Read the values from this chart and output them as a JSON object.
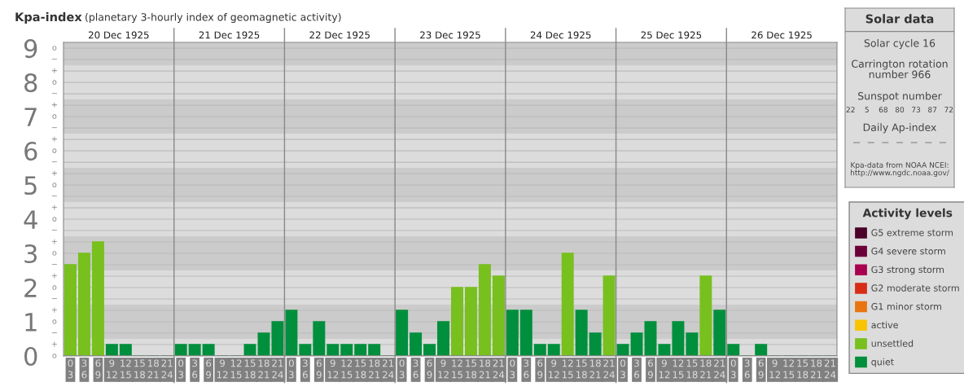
{
  "chart_data": [
    {
      "type": "bar",
      "title": "Kpa-index",
      "subtitle": "(planetary 3-hourly index of geomagnetic activity)",
      "categories": [
        "0\n3",
        "3\n6",
        "6\n9",
        "9\n12",
        "12\n15",
        "15\n18",
        "18\n21",
        "21\n24",
        "0\n3",
        "3\n6",
        "6\n9",
        "9\n12",
        "12\n15",
        "15\n18",
        "18\n21",
        "21\n24",
        "0\n3",
        "3\n6",
        "6\n9",
        "9\n12",
        "12\n15",
        "15\n18",
        "18\n21",
        "21\n24",
        "0\n3",
        "3\n6",
        "6\n9",
        "9\n12",
        "12\n15",
        "15\n18",
        "18\n21",
        "21\n24",
        "0\n3",
        "3\n6",
        "6\n9",
        "9\n12",
        "12\n15",
        "15\n18",
        "18\n21",
        "21\n24",
        "0\n3",
        "3\n6",
        "6\n9",
        "9\n12",
        "12\n15",
        "15\n18",
        "18\n21",
        "21\n24",
        "0\n3",
        "3\n6",
        "6\n9",
        "9\n12",
        "12\n15",
        "15\n18",
        "18\n21",
        "21\n24"
      ],
      "series": [
        {
          "name": "G5 extreme storm",
          "color": "#4b0029",
          "values": [
            null,
            null,
            null,
            null,
            null,
            null,
            null,
            null,
            null,
            null,
            null,
            null,
            null,
            null,
            null,
            null,
            null,
            null,
            null,
            null,
            null,
            null,
            null,
            null,
            null,
            null,
            null,
            null,
            null,
            null,
            null,
            null,
            null,
            null,
            null,
            null,
            null,
            null,
            null,
            null,
            null,
            null,
            null,
            null,
            null,
            null,
            null,
            null,
            null,
            null,
            null,
            null,
            null,
            null,
            null,
            null
          ]
        },
        {
          "name": "G4 severe storm",
          "color": "#6b0039",
          "values": [
            null,
            null,
            null,
            null,
            null,
            null,
            null,
            null,
            null,
            null,
            null,
            null,
            null,
            null,
            null,
            null,
            null,
            null,
            null,
            null,
            null,
            null,
            null,
            null,
            null,
            null,
            null,
            null,
            null,
            null,
            null,
            null,
            null,
            null,
            null,
            null,
            null,
            null,
            null,
            null,
            null,
            null,
            null,
            null,
            null,
            null,
            null,
            null,
            null,
            null,
            null,
            null,
            null,
            null,
            null,
            null
          ]
        },
        {
          "name": "G3 strong storm",
          "color": "#a8004f",
          "values": [
            null,
            null,
            null,
            null,
            null,
            null,
            null,
            null,
            null,
            null,
            null,
            null,
            null,
            null,
            null,
            null,
            null,
            null,
            null,
            null,
            null,
            null,
            null,
            null,
            null,
            null,
            null,
            null,
            null,
            null,
            null,
            null,
            null,
            null,
            null,
            null,
            null,
            null,
            null,
            null,
            null,
            null,
            null,
            null,
            null,
            null,
            null,
            null,
            null,
            null,
            null,
            null,
            null,
            null,
            null,
            null
          ]
        },
        {
          "name": "G2 moderate storm",
          "color": "#d82c17",
          "values": [
            null,
            null,
            null,
            null,
            null,
            null,
            null,
            null,
            null,
            null,
            null,
            null,
            null,
            null,
            null,
            null,
            null,
            null,
            null,
            null,
            null,
            null,
            null,
            null,
            null,
            null,
            null,
            null,
            null,
            null,
            null,
            null,
            null,
            null,
            null,
            null,
            null,
            null,
            null,
            null,
            null,
            null,
            null,
            null,
            null,
            null,
            null,
            null,
            null,
            null,
            null,
            null,
            null,
            null,
            null,
            null
          ]
        },
        {
          "name": "G1 minor storm",
          "color": "#e87511",
          "values": [
            null,
            null,
            null,
            null,
            null,
            null,
            null,
            null,
            null,
            null,
            null,
            null,
            null,
            null,
            null,
            null,
            null,
            null,
            null,
            null,
            null,
            null,
            null,
            null,
            null,
            null,
            null,
            null,
            null,
            null,
            null,
            null,
            null,
            null,
            null,
            null,
            null,
            null,
            null,
            null,
            null,
            null,
            null,
            null,
            null,
            null,
            null,
            null,
            null,
            null,
            null,
            null,
            null,
            null,
            null,
            null
          ]
        },
        {
          "name": "active",
          "color": "#f9c300",
          "values": [
            null,
            null,
            null,
            null,
            null,
            null,
            null,
            null,
            null,
            null,
            null,
            null,
            null,
            null,
            null,
            null,
            null,
            null,
            null,
            null,
            null,
            null,
            null,
            null,
            null,
            null,
            null,
            null,
            null,
            null,
            null,
            null,
            null,
            null,
            null,
            null,
            null,
            null,
            null,
            null,
            null,
            null,
            null,
            null,
            null,
            null,
            null,
            null,
            null,
            null,
            null,
            null,
            null,
            null,
            null,
            null
          ]
        },
        {
          "name": "unsettled",
          "color": "#78c01e",
          "values": [
            2.667,
            3,
            3.333,
            null,
            null,
            null,
            null,
            null,
            null,
            null,
            null,
            null,
            null,
            null,
            null,
            null,
            null,
            null,
            null,
            null,
            null,
            null,
            null,
            null,
            null,
            null,
            null,
            null,
            2,
            2,
            2.667,
            2.333,
            null,
            null,
            null,
            null,
            3,
            null,
            null,
            2.333,
            null,
            null,
            null,
            null,
            null,
            null,
            2.333,
            null,
            null,
            null,
            null,
            null,
            null,
            null,
            null,
            null
          ]
        },
        {
          "name": "quiet",
          "color": "#008f3c",
          "values": [
            null,
            null,
            null,
            0.333,
            0.333,
            0,
            0,
            0,
            0.333,
            0.333,
            0.333,
            0,
            0,
            0.333,
            0.667,
            1,
            1.333,
            0.333,
            1,
            0.333,
            0.333,
            0.333,
            0.333,
            0,
            1.333,
            0.667,
            0.333,
            1,
            null,
            null,
            null,
            null,
            1.333,
            1.333,
            0.333,
            0.333,
            null,
            1.333,
            0.667,
            null,
            0.333,
            0.667,
            1,
            0.333,
            1,
            0.667,
            null,
            1.333,
            0.333,
            0,
            0.333,
            0,
            0,
            0,
            0,
            0
          ]
        }
      ],
      "legend": "right",
      "legend_title": "Activity levels",
      "ylim": [
        0,
        9.17
      ],
      "yticks": [
        0,
        {
          "value": 0.333,
          "label": null
        },
        {
          "value": 0.667,
          "label": null
        },
        1,
        {
          "value": 1.333,
          "label": null
        },
        {
          "value": 1.667,
          "label": null
        },
        2,
        {
          "value": 2.333,
          "label": null
        },
        {
          "value": 2.667,
          "label": null
        },
        3,
        {
          "value": 3.333,
          "label": null
        },
        {
          "value": 3.667,
          "label": null
        },
        4,
        {
          "value": 4.333,
          "label": null
        },
        {
          "value": 4.667,
          "label": null
        },
        5,
        {
          "value": 5.333,
          "label": null
        },
        {
          "value": 5.667,
          "label": null
        },
        6,
        {
          "value": 6.333,
          "label": null
        },
        {
          "value": 6.667,
          "label": null
        },
        7,
        {
          "value": 7.333,
          "label": null
        },
        {
          "value": 7.667,
          "label": null
        },
        8,
        {
          "value": 8.333,
          "label": null
        },
        {
          "value": 8.667,
          "label": null
        },
        9
      ],
      "annotations": [
        "20 Dec 1925",
        "21 Dec 1925",
        "22 Dec 1925",
        "23 Dec 1925",
        "24 Dec 1925",
        "25 Dec 1925",
        "26 Dec 1925",
        "o",
        "+",
        "−",
        "o",
        "+",
        "−",
        "o",
        "+",
        "−",
        "o",
        "+",
        "−",
        "o",
        "+",
        "−",
        "o",
        "+",
        "−",
        "o",
        "+",
        "−",
        "o",
        "+",
        "−",
        "o",
        "+",
        "−",
        "o"
      ],
      "bands": [
        {
          "axis": "y",
          "from": 0.5,
          "to": 1.5,
          "color": "#cbcbcb"
        },
        {
          "axis": "y",
          "from": 2.5,
          "to": 3.5,
          "color": "#cbcbcb"
        },
        {
          "axis": "y",
          "from": 4.5,
          "to": 5.5,
          "color": "#cbcbcb"
        },
        {
          "axis": "y",
          "from": 6.5,
          "to": 7.5,
          "color": "#cbcbcb"
        },
        {
          "axis": "y",
          "from": 8.5,
          "to": 9.17,
          "color": "#cbcbcb"
        }
      ],
      "grid": "y"
    },
    {
      "type": "other",
      "title": "Solar data",
      "annotations": [
        "Solar cycle 16",
        "Carrington rotation\nnumber 966",
        "Sunspot number",
        "22    5    68   80   73   87   72",
        "Daily Ap-index",
        "—   —   —   —   —   —   —",
        "Kpa-data from NOAA NCEI:\nhttp://www.ngdc.noaa.gov/"
      ]
    }
  ]
}
